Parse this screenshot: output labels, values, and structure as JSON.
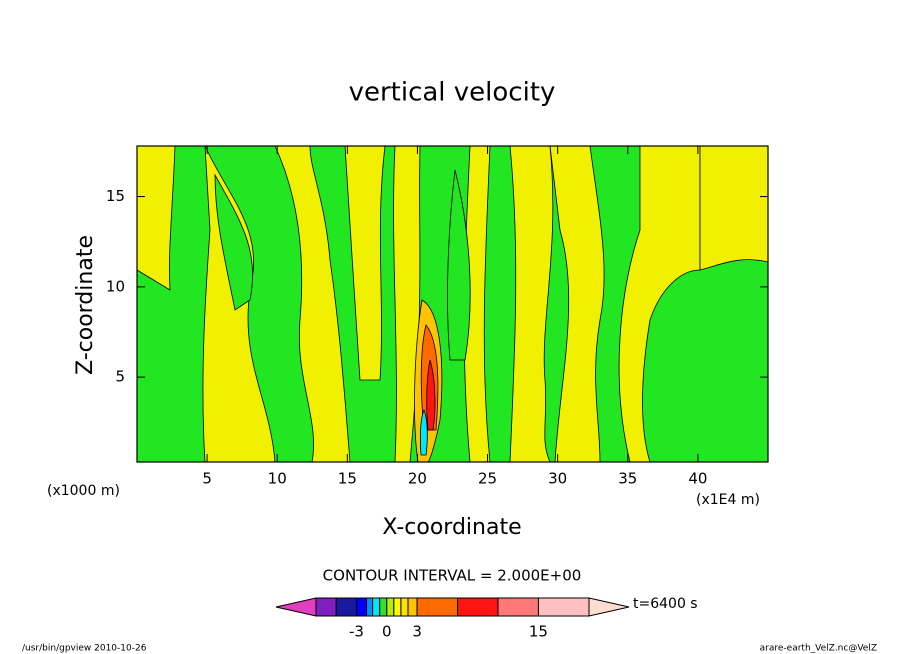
{
  "chart_data": {
    "type": "contour",
    "title": "vertical velocity",
    "xlabel": "X-coordinate",
    "ylabel": "Z-coordinate",
    "x_unit_left": "(x1000 m)",
    "x_unit_right": "(x1E4 m)",
    "xlim": [
      0,
      45
    ],
    "xticks": [
      5,
      10,
      15,
      20,
      25,
      30,
      35,
      40
    ],
    "ylim": [
      0.3,
      17.8
    ],
    "yticks": [
      5,
      10,
      15
    ],
    "contour_interval": "CONTOUR INTERVAL = 2.000E+00",
    "time_label": "t=6400 s",
    "colorbar": {
      "bounds": [
        -7,
        -5,
        -3,
        -2,
        -1.4,
        -0.7,
        0,
        0.7,
        1.4,
        2.1,
        3,
        7,
        11,
        15,
        20
      ],
      "colors": [
        "#7f1fbf",
        "#1a1aa0",
        "#0000ff",
        "#0090ff",
        "#00e8ff",
        "#32e02f",
        "#b4f000",
        "#ffff00",
        "#ffe300",
        "#ffc400",
        "#ff6a00",
        "#ff1414",
        "#ff7878",
        "#ffbfbf"
      ],
      "under_color": "#e040c0",
      "over_color": "#ffdcd0",
      "ticks": [
        -3,
        0,
        3,
        15
      ]
    },
    "footer_left": "/usr/bin/gpview  2010-10-26",
    "footer_right": "arare-earth_VelZ.nc@VelZ"
  }
}
